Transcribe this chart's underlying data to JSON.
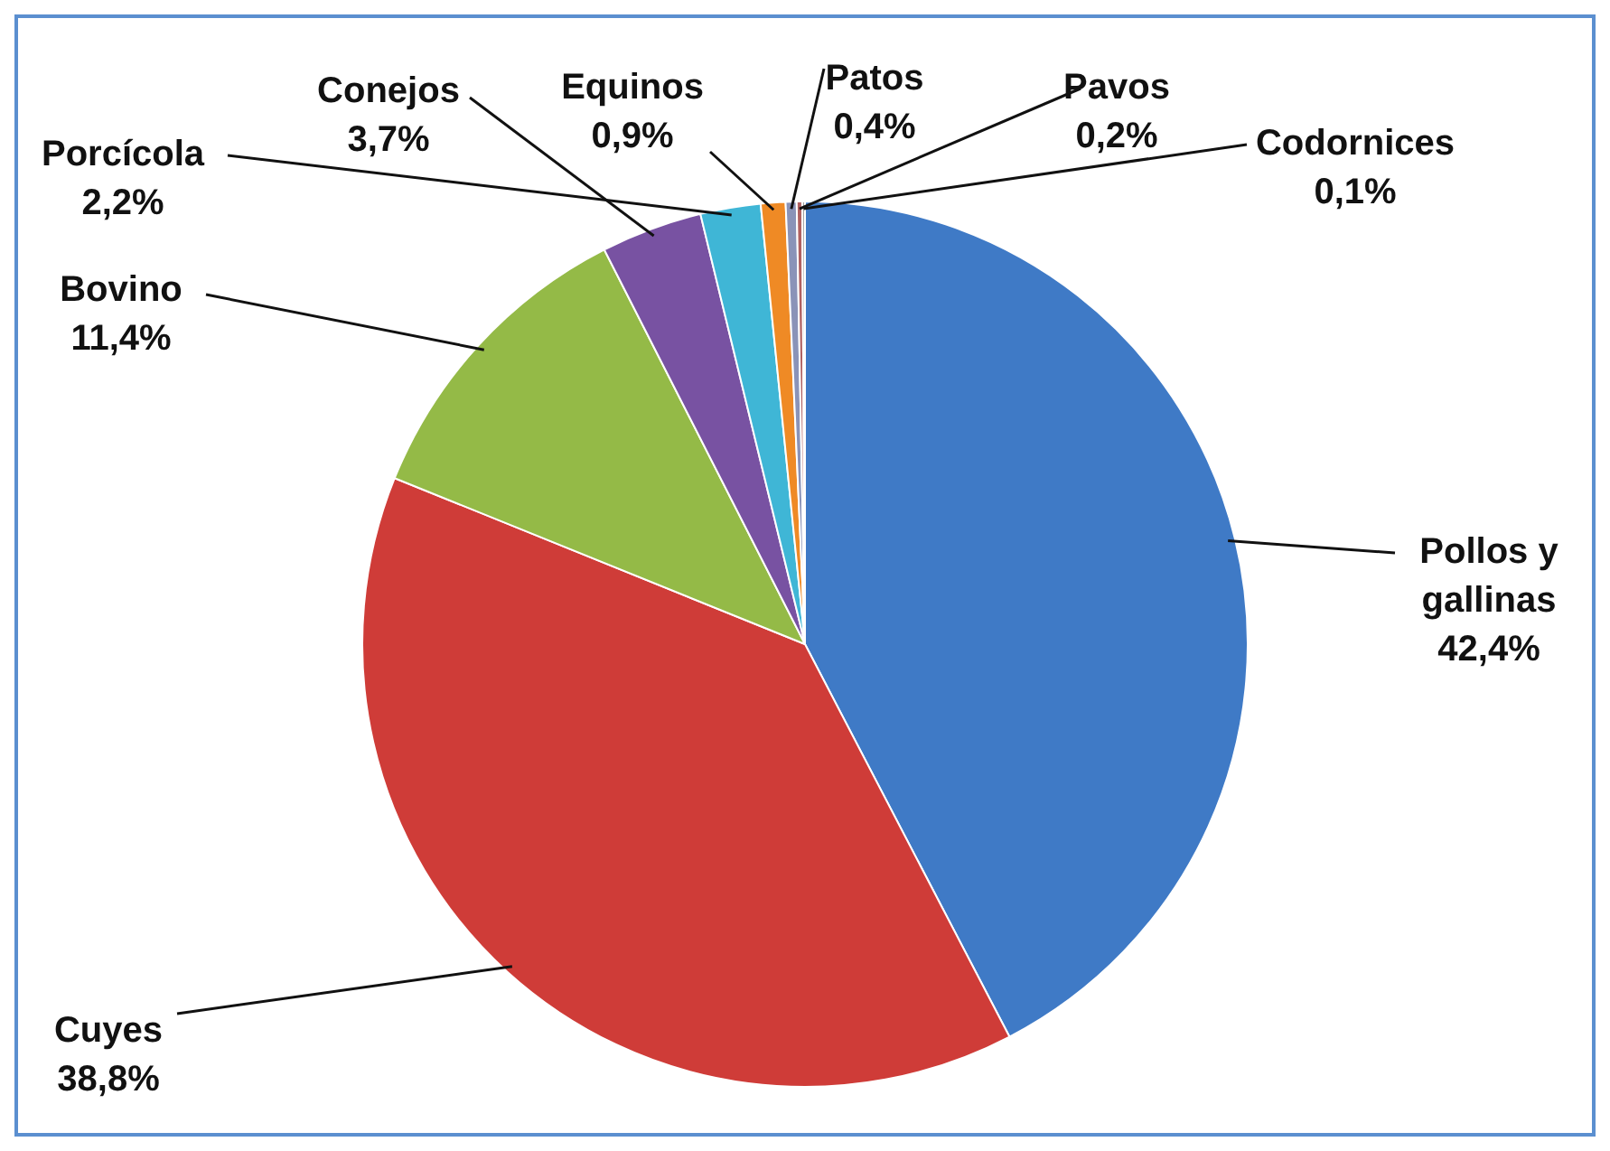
{
  "chart_data": {
    "type": "pie",
    "categories": [
      "Pollos y gallinas",
      "Cuyes",
      "Bovino",
      "Conejos",
      "Porcícola",
      "Equinos",
      "Patos",
      "Pavos",
      "Codornices"
    ],
    "values": [
      42.4,
      38.8,
      11.4,
      3.7,
      2.2,
      0.9,
      0.4,
      0.2,
      0.1
    ],
    "value_labels": [
      "42,4%",
      "38,8%",
      "11,4%",
      "3,7%",
      "2,2%",
      "0,9%",
      "0,4%",
      "0,2%",
      "0,1%"
    ],
    "colors": [
      "#3f7ac6",
      "#cf3c38",
      "#94ba47",
      "#7852a2",
      "#3fb6d6",
      "#ef8a25",
      "#8a93b8",
      "#b06060",
      "#a0a0a0"
    ],
    "legend": false
  }
}
